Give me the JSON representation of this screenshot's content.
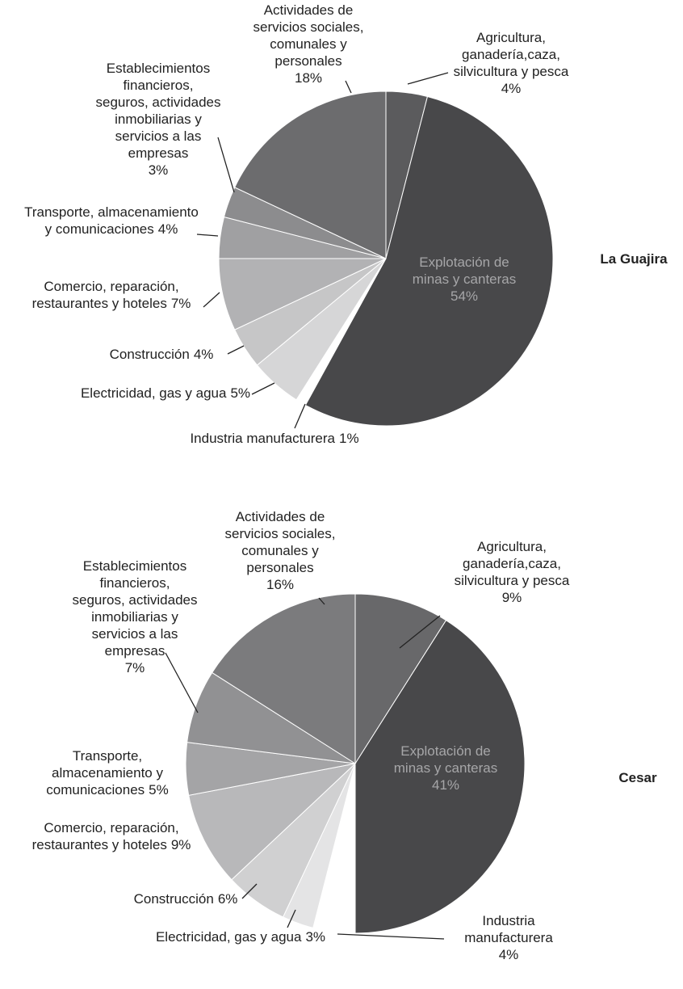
{
  "chart_data": [
    {
      "type": "pie",
      "title": "La Guajira",
      "categories": [
        "Agricultura, ganadería,caza, silvicultura y pesca",
        "Explotación de minas y canteras",
        "Industria manufacturera",
        "Electricidad, gas y agua",
        "Construcción",
        "Comercio, reparación, restaurantes y hoteles",
        "Transporte, almacenamiento y comunicaciones",
        "Establecimientos financieros, seguros, actividades inmobiliarias y servicios a las empresas",
        "Actividades de servicios sociales, comunales y personales"
      ],
      "values": [
        4,
        54,
        1,
        5,
        4,
        7,
        4,
        3,
        18
      ],
      "value_labels": [
        "4%",
        "54%",
        "1%",
        "5%",
        "4%",
        "7%",
        "4%",
        "3%",
        "18%"
      ],
      "colors": [
        "#5b5b5d",
        "#48484a",
        "#ffffff",
        "#d6d6d7",
        "#c6c6c7",
        "#b2b2b4",
        "#a0a0a2",
        "#8c8c8e",
        "#6c6c6e"
      ]
    },
    {
      "type": "pie",
      "title": "Cesar",
      "categories": [
        "Agricultura, ganadería,caza, silvicultura y pesca",
        "Explotación de minas y canteras",
        "Industria manufacturera",
        "Electricidad, gas y agua",
        "Construcción",
        "Comercio, reparación, restaurantes y hoteles",
        "Transporte, almacenamiento y comunicaciones",
        "Establecimientos financieros, seguros, actividades inmobiliarias y servicios a las empresas",
        "Actividades de servicios sociales, comunales y personales"
      ],
      "values": [
        9,
        41,
        4,
        3,
        6,
        9,
        5,
        7,
        16
      ],
      "value_labels": [
        "9%",
        "41%",
        "4%",
        "3%",
        "6%",
        "9%",
        "5%",
        "7%",
        "16%"
      ],
      "colors": [
        "#68686a",
        "#48484a",
        "#ffffff",
        "#e4e4e5",
        "#d0d0d1",
        "#b8b8ba",
        "#a4a4a6",
        "#919193",
        "#7b7b7d"
      ]
    }
  ]
}
